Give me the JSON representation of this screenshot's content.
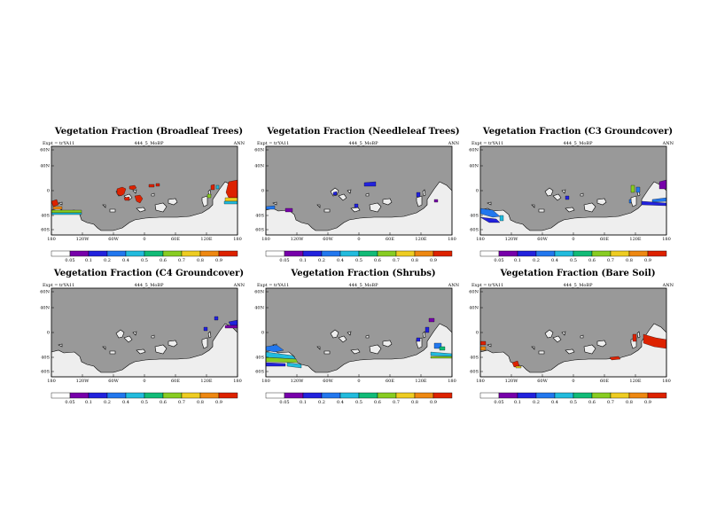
{
  "colors": {
    "ocean": "#999999",
    "land": "#eeeeee",
    "palette": [
      "#ffffff",
      "#7700aa",
      "#2222dd",
      "#2277ee",
      "#22bbdd",
      "#11bb77",
      "#88cc22",
      "#eecc22",
      "#ee8811",
      "#dd2200"
    ]
  },
  "colorbar_labels": [
    "0.05",
    "0.1",
    "0.2",
    "0.4",
    "0.5",
    "0.6",
    "0.7",
    "0.8",
    "0.9"
  ],
  "y_ticks": [
    "60N",
    "40N",
    "0",
    "40S",
    "60S"
  ],
  "x_ticks": [
    "180",
    "120W",
    "60W",
    "0",
    "60E",
    "120E",
    "180"
  ],
  "chart_data": [
    {
      "type": "heatmap",
      "title": "Vegetation Fraction (Broadleaf Trees)",
      "left_label": "Expt = trYA11",
      "center_label": "444_5_MoBP",
      "right_label": "ANN",
      "colorbar": [
        0.05,
        0.1,
        0.2,
        0.4,
        0.5,
        0.6,
        0.7,
        0.8,
        0.9
      ]
    },
    {
      "type": "heatmap",
      "title": "Vegetation Fraction (Needleleaf Trees)",
      "left_label": "Expt = trYA11",
      "center_label": "444_5_MoBP",
      "right_label": "ANN",
      "colorbar": [
        0.05,
        0.1,
        0.2,
        0.4,
        0.5,
        0.6,
        0.7,
        0.8,
        0.9
      ]
    },
    {
      "type": "heatmap",
      "title": "Vegetation Fraction (C3 Groundcover)",
      "left_label": "Expt = trYA11",
      "center_label": "444_5_MoBP",
      "right_label": "ANN",
      "colorbar": [
        0.05,
        0.1,
        0.2,
        0.4,
        0.5,
        0.6,
        0.7,
        0.8,
        0.9
      ]
    },
    {
      "type": "heatmap",
      "title": "Vegetation Fraction (C4 Groundcover)",
      "left_label": "Expt = trYA11",
      "center_label": "444_5_MoBP",
      "right_label": "ANN",
      "colorbar": [
        0.05,
        0.1,
        0.2,
        0.4,
        0.5,
        0.6,
        0.7,
        0.8,
        0.9
      ]
    },
    {
      "type": "heatmap",
      "title": "Vegetation Fraction (Shrubs)",
      "left_label": "Expt = trYA11",
      "center_label": "444_5_MoBP",
      "right_label": "ANN",
      "colorbar": [
        0.05,
        0.1,
        0.2,
        0.4,
        0.5,
        0.6,
        0.7,
        0.8,
        0.9
      ]
    },
    {
      "type": "heatmap",
      "title": "Vegetation Fraction (Bare Soil)",
      "left_label": "Expt = trYA11",
      "center_label": "444_5_MoBP",
      "right_label": "ANN",
      "colorbar": [
        0.05,
        0.1,
        0.2,
        0.4,
        0.5,
        0.6,
        0.7,
        0.8,
        0.9
      ]
    }
  ]
}
